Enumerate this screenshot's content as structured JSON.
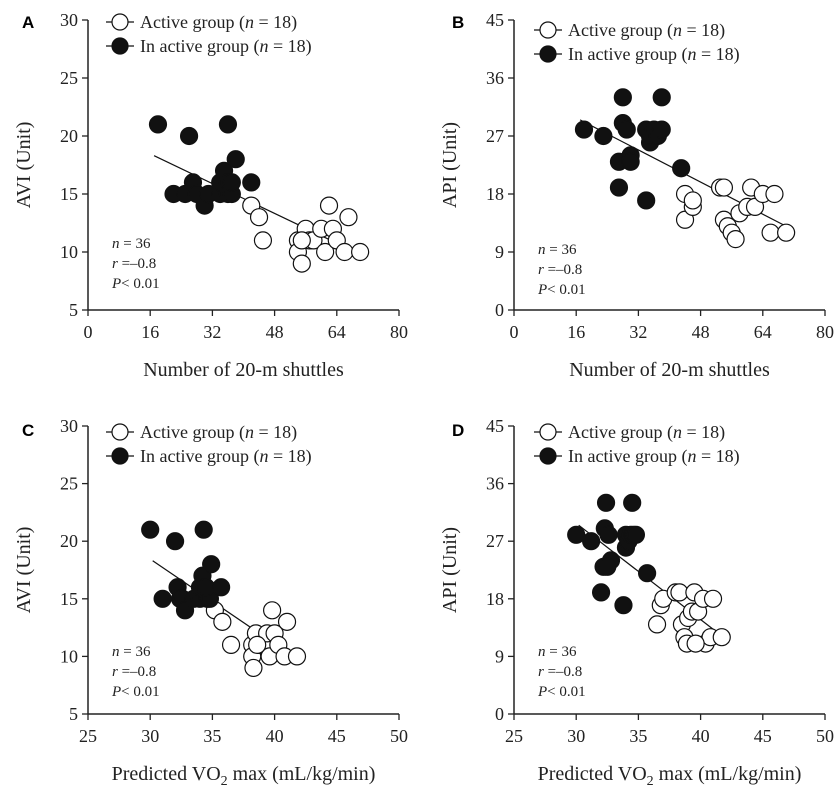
{
  "chart_data": [
    {
      "panel": "A",
      "type": "scatter",
      "xlabel": "Number of 20-m shuttles",
      "ylabel": "AVI (Unit)",
      "xlim": [
        0,
        80
      ],
      "ylim": [
        5,
        30
      ],
      "xticks": [
        "0",
        "16",
        "32",
        "48",
        "64",
        "80"
      ],
      "yticks": [
        "5",
        "10",
        "15",
        "20",
        "25",
        "30"
      ],
      "legend": {
        "position": "top",
        "items": [
          {
            "prefix": "Active group (",
            "n": "n",
            "suffix": " = 18)",
            "style": "open"
          },
          {
            "prefix": "In active group (",
            "n": "n",
            "suffix": " = 18)",
            "style": "filled"
          }
        ]
      },
      "stats": {
        "n": "n",
        "n_val": " = 36",
        "r": "r",
        "r_val": " =–0.8",
        "p": "P",
        "p_val": "< 0.01"
      },
      "fit_line": [
        [
          17,
          18.3
        ],
        [
          70,
          9.8
        ]
      ],
      "series": [
        {
          "name": "Active group",
          "style": "open",
          "points": [
            [
              42,
              14
            ],
            [
              44,
              13
            ],
            [
              45,
              11
            ],
            [
              54,
              11
            ],
            [
              54,
              10
            ],
            [
              55,
              9
            ],
            [
              56,
              12
            ],
            [
              57,
              11
            ],
            [
              58,
              11
            ],
            [
              60,
              12
            ],
            [
              61,
              10
            ],
            [
              62,
              14
            ],
            [
              63,
              12
            ],
            [
              64,
              11
            ],
            [
              66,
              10
            ],
            [
              67,
              13
            ],
            [
              70,
              10
            ],
            [
              55,
              11
            ]
          ]
        },
        {
          "name": "In active group",
          "style": "filled",
          "points": [
            [
              18,
              21
            ],
            [
              22,
              15
            ],
            [
              25,
              15
            ],
            [
              26,
              20
            ],
            [
              27,
              16
            ],
            [
              28,
              15
            ],
            [
              30,
              14
            ],
            [
              31,
              15
            ],
            [
              34,
              15
            ],
            [
              34,
              16
            ],
            [
              35,
              17
            ],
            [
              36,
              16
            ],
            [
              36,
              21
            ],
            [
              36,
              15
            ],
            [
              37,
              15
            ],
            [
              38,
              18
            ],
            [
              37,
              16
            ],
            [
              42,
              16
            ]
          ]
        }
      ]
    },
    {
      "panel": "B",
      "type": "scatter",
      "xlabel": "Number of 20-m shuttles",
      "ylabel": "API (Unit)",
      "xlim": [
        0,
        80
      ],
      "ylim": [
        0,
        45
      ],
      "xticks": [
        "0",
        "16",
        "32",
        "48",
        "64",
        "80"
      ],
      "yticks": [
        "0",
        "9",
        "18",
        "27",
        "36",
        "45"
      ],
      "legend": {
        "position": "top",
        "items": [
          {
            "prefix": "Active group (",
            "n": "n",
            "suffix": " = 18)",
            "style": "open"
          },
          {
            "prefix": "In active group (",
            "n": "n",
            "suffix": " = 18)",
            "style": "filled"
          }
        ]
      },
      "stats": {
        "n": "n",
        "n_val": " = 36",
        "r": "r",
        "r_val": " =–0.8",
        "p": "P",
        "p_val": "< 0.01"
      },
      "fit_line": [
        [
          17,
          29.5
        ],
        [
          70,
          13
        ]
      ],
      "series": [
        {
          "name": "Active group",
          "style": "open",
          "points": [
            [
              44,
              18
            ],
            [
              44,
              14
            ],
            [
              46,
              16
            ],
            [
              46,
              17
            ],
            [
              53,
              19
            ],
            [
              54,
              19
            ],
            [
              54,
              14
            ],
            [
              55,
              13
            ],
            [
              56,
              12
            ],
            [
              57,
              11
            ],
            [
              58,
              15
            ],
            [
              60,
              16
            ],
            [
              61,
              19
            ],
            [
              62,
              16
            ],
            [
              64,
              18
            ],
            [
              66,
              12
            ],
            [
              67,
              18
            ],
            [
              70,
              12
            ]
          ]
        },
        {
          "name": "In active group",
          "style": "filled",
          "points": [
            [
              18,
              28
            ],
            [
              23,
              27
            ],
            [
              27,
              19
            ],
            [
              27,
              23
            ],
            [
              28,
              33
            ],
            [
              28,
              29
            ],
            [
              29,
              28
            ],
            [
              30,
              24
            ],
            [
              30,
              23
            ],
            [
              34,
              17
            ],
            [
              34,
              28
            ],
            [
              35,
              26
            ],
            [
              35,
              27
            ],
            [
              36,
              28
            ],
            [
              37,
              27
            ],
            [
              38,
              33
            ],
            [
              38,
              28
            ],
            [
              43,
              22
            ]
          ]
        }
      ]
    },
    {
      "panel": "C",
      "type": "scatter",
      "xlabel": "Predicted VO",
      "xlabel_sub": "2",
      "xlabel_rest": " max (mL/kg/min)",
      "ylabel": "AVI (Unit)",
      "xlim": [
        25,
        50
      ],
      "ylim": [
        5,
        30
      ],
      "xticks": [
        "25",
        "30",
        "35",
        "40",
        "45",
        "50"
      ],
      "yticks": [
        "5",
        "10",
        "15",
        "20",
        "25",
        "30"
      ],
      "legend": {
        "position": "top",
        "items": [
          {
            "prefix": "Active group (",
            "n": "n",
            "suffix": " = 18)",
            "style": "open"
          },
          {
            "prefix": "In active group (",
            "n": "n",
            "suffix": " = 18)",
            "style": "filled"
          }
        ]
      },
      "stats": {
        "n": "n",
        "n_val": " = 36",
        "r": "r",
        "r_val": " =–0.8",
        "p": "P",
        "p_val": "< 0.01"
      },
      "fit_line": [
        [
          30.2,
          18.3
        ],
        [
          41.5,
          10
        ]
      ],
      "series": [
        {
          "name": "Active group",
          "style": "open",
          "points": [
            [
              35.2,
              14
            ],
            [
              35.8,
              13
            ],
            [
              36.5,
              11
            ],
            [
              38.2,
              11
            ],
            [
              38.2,
              10
            ],
            [
              38.3,
              9
            ],
            [
              38.5,
              12
            ],
            [
              38.8,
              11
            ],
            [
              39.0,
              11
            ],
            [
              39.4,
              12
            ],
            [
              39.6,
              10
            ],
            [
              39.8,
              14
            ],
            [
              40.0,
              12
            ],
            [
              40.3,
              11
            ],
            [
              40.8,
              10
            ],
            [
              41.0,
              13
            ],
            [
              41.8,
              10
            ],
            [
              38.6,
              11
            ]
          ]
        },
        {
          "name": "In active group",
          "style": "filled",
          "points": [
            [
              30.0,
              21
            ],
            [
              31.0,
              15
            ],
            [
              32.0,
              20
            ],
            [
              32.2,
              16
            ],
            [
              32.4,
              15
            ],
            [
              32.6,
              15
            ],
            [
              32.8,
              14
            ],
            [
              33.5,
              15
            ],
            [
              34.0,
              15
            ],
            [
              34.0,
              16
            ],
            [
              34.2,
              17
            ],
            [
              34.4,
              16
            ],
            [
              34.3,
              21
            ],
            [
              34.6,
              15
            ],
            [
              34.8,
              15
            ],
            [
              34.9,
              18
            ],
            [
              34.5,
              16
            ],
            [
              35.7,
              16
            ]
          ]
        }
      ]
    },
    {
      "panel": "D",
      "type": "scatter",
      "xlabel": "Predicted VO",
      "xlabel_sub": "2",
      "xlabel_rest": " max (mL/kg/min)",
      "ylabel": "API (Unit)",
      "xlim": [
        25,
        50
      ],
      "ylim": [
        0,
        45
      ],
      "xticks": [
        "25",
        "30",
        "35",
        "40",
        "45",
        "50"
      ],
      "yticks": [
        "0",
        "9",
        "18",
        "27",
        "36",
        "45"
      ],
      "legend": {
        "position": "top",
        "items": [
          {
            "prefix": "Active group (",
            "n": "n",
            "suffix": " = 18)",
            "style": "open"
          },
          {
            "prefix": "In active group (",
            "n": "n",
            "suffix": " = 18)",
            "style": "filled"
          }
        ]
      },
      "stats": {
        "n": "n",
        "n_val": " = 36",
        "r": "r",
        "r_val": " =–0.8",
        "p": "P",
        "p_val": "< 0.01"
      },
      "fit_line": [
        [
          30.2,
          29.5
        ],
        [
          41.5,
          12.5
        ]
      ],
      "series": [
        {
          "name": "Active group",
          "style": "open",
          "points": [
            [
              36.5,
              14
            ],
            [
              36.8,
              17
            ],
            [
              37.0,
              18
            ],
            [
              38.0,
              19
            ],
            [
              38.3,
              19
            ],
            [
              38.5,
              14
            ],
            [
              38.7,
              12
            ],
            [
              38.9,
              11
            ],
            [
              39.0,
              15
            ],
            [
              39.3,
              16
            ],
            [
              39.5,
              19
            ],
            [
              39.8,
              16
            ],
            [
              40.2,
              18
            ],
            [
              40.4,
              11
            ],
            [
              40.8,
              12
            ],
            [
              41.0,
              18
            ],
            [
              41.7,
              12
            ],
            [
              39.6,
              11
            ]
          ]
        },
        {
          "name": "In active group",
          "style": "filled",
          "points": [
            [
              30.0,
              28
            ],
            [
              31.2,
              27
            ],
            [
              32.0,
              19
            ],
            [
              32.2,
              23
            ],
            [
              32.4,
              33
            ],
            [
              32.3,
              29
            ],
            [
              32.6,
              28
            ],
            [
              32.8,
              24
            ],
            [
              32.5,
              23
            ],
            [
              33.8,
              17
            ],
            [
              34.0,
              28
            ],
            [
              34.0,
              26
            ],
            [
              34.2,
              27
            ],
            [
              34.4,
              28
            ],
            [
              34.6,
              28
            ],
            [
              34.5,
              33
            ],
            [
              34.8,
              28
            ],
            [
              35.7,
              22
            ]
          ]
        }
      ]
    }
  ]
}
